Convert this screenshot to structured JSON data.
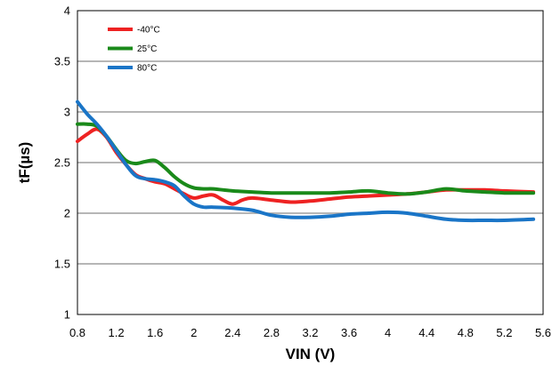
{
  "chart_data": {
    "type": "line",
    "xlabel": "VIN (V)",
    "ylabel": "tF(µs)",
    "xlim": [
      0.8,
      5.6
    ],
    "ylim": [
      1,
      4
    ],
    "xticks": [
      "0.8",
      "1.2",
      "1.6",
      "2",
      "2.4",
      "2.8",
      "3.2",
      "3.6",
      "4",
      "4.4",
      "4.8",
      "5.2",
      "5.6"
    ],
    "yticks": [
      "1",
      "1.5",
      "2",
      "2.5",
      "3",
      "3.5",
      "4"
    ],
    "grid": "horizontal",
    "legend_position": "top-left",
    "series": [
      {
        "name": "-40°C",
        "color": "#ee2222",
        "x": [
          0.8,
          0.9,
          1.0,
          1.1,
          1.2,
          1.3,
          1.4,
          1.5,
          1.6,
          1.7,
          1.8,
          1.9,
          2.0,
          2.1,
          2.2,
          2.3,
          2.4,
          2.5,
          2.6,
          2.8,
          3.0,
          3.2,
          3.4,
          3.6,
          3.8,
          4.0,
          4.2,
          4.4,
          4.6,
          4.8,
          5.0,
          5.2,
          5.5
        ],
        "y": [
          2.71,
          2.78,
          2.83,
          2.75,
          2.6,
          2.48,
          2.38,
          2.34,
          2.31,
          2.29,
          2.24,
          2.19,
          2.15,
          2.17,
          2.18,
          2.13,
          2.09,
          2.13,
          2.15,
          2.13,
          2.11,
          2.12,
          2.14,
          2.16,
          2.17,
          2.18,
          2.19,
          2.21,
          2.23,
          2.23,
          2.23,
          2.22,
          2.21
        ]
      },
      {
        "name": "25°C",
        "color": "#1a8a1a",
        "x": [
          0.8,
          0.9,
          1.0,
          1.1,
          1.2,
          1.3,
          1.4,
          1.5,
          1.6,
          1.7,
          1.8,
          1.9,
          2.0,
          2.1,
          2.2,
          2.4,
          2.6,
          2.8,
          3.0,
          3.2,
          3.4,
          3.6,
          3.8,
          4.0,
          4.2,
          4.4,
          4.6,
          4.8,
          5.0,
          5.2,
          5.5
        ],
        "y": [
          2.88,
          2.88,
          2.86,
          2.76,
          2.63,
          2.52,
          2.49,
          2.51,
          2.52,
          2.45,
          2.36,
          2.29,
          2.25,
          2.24,
          2.24,
          2.22,
          2.21,
          2.2,
          2.2,
          2.2,
          2.2,
          2.21,
          2.22,
          2.2,
          2.19,
          2.21,
          2.24,
          2.22,
          2.21,
          2.2,
          2.2
        ]
      },
      {
        "name": "80°C",
        "color": "#1a75c7",
        "x": [
          0.8,
          0.9,
          1.0,
          1.1,
          1.2,
          1.3,
          1.4,
          1.5,
          1.6,
          1.7,
          1.8,
          1.9,
          2.0,
          2.1,
          2.2,
          2.4,
          2.6,
          2.8,
          3.0,
          3.2,
          3.4,
          3.6,
          3.8,
          4.0,
          4.2,
          4.4,
          4.6,
          4.8,
          5.0,
          5.2,
          5.5
        ],
        "y": [
          3.1,
          2.98,
          2.88,
          2.76,
          2.62,
          2.48,
          2.37,
          2.34,
          2.33,
          2.31,
          2.27,
          2.17,
          2.09,
          2.06,
          2.06,
          2.05,
          2.03,
          1.98,
          1.96,
          1.96,
          1.97,
          1.99,
          2.0,
          2.01,
          2.0,
          1.97,
          1.94,
          1.93,
          1.93,
          1.93,
          1.94
        ]
      }
    ]
  }
}
